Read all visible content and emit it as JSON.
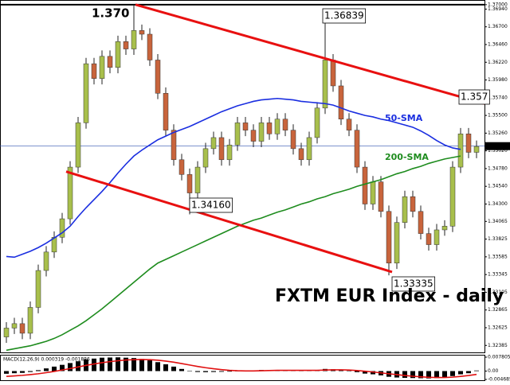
{
  "chart_data": [
    {
      "type": "candlestick",
      "title": "FXTM EUR Index - daily",
      "open": [
        1.325,
        1.3262,
        1.3268,
        1.3255,
        1.329,
        1.334,
        1.3365,
        1.3385,
        1.341,
        1.348,
        1.354,
        1.362,
        1.36,
        1.363,
        1.3615,
        1.365,
        1.364,
        1.3665,
        1.366,
        1.3625,
        1.358,
        1.353,
        1.349,
        1.347,
        1.3445,
        1.348,
        1.3505,
        1.352,
        1.349,
        1.351,
        1.354,
        1.353,
        1.3515,
        1.354,
        1.3525,
        1.3545,
        1.353,
        1.3505,
        1.349,
        1.352,
        1.356,
        1.3625,
        1.359,
        1.3545,
        1.353,
        1.348,
        1.343,
        1.346,
        1.342,
        1.335,
        1.3405,
        1.344,
        1.342,
        1.339,
        1.3375,
        1.3395,
        1.34,
        1.348,
        1.3525,
        1.35
      ],
      "high": [
        1.327,
        1.3276,
        1.3276,
        1.3298,
        1.3348,
        1.3373,
        1.3393,
        1.3418,
        1.3488,
        1.3548,
        1.3628,
        1.3628,
        1.3638,
        1.3638,
        1.3658,
        1.3658,
        1.37,
        1.3673,
        1.3668,
        1.3633,
        1.3588,
        1.3538,
        1.3498,
        1.3478,
        1.3488,
        1.3513,
        1.3528,
        1.3528,
        1.3518,
        1.3548,
        1.3548,
        1.3538,
        1.3548,
        1.3548,
        1.3553,
        1.3553,
        1.3538,
        1.3513,
        1.3528,
        1.3568,
        1.36839,
        1.3633,
        1.3598,
        1.3553,
        1.3538,
        1.3488,
        1.3468,
        1.3468,
        1.3428,
        1.3413,
        1.3448,
        1.3448,
        1.3428,
        1.3398,
        1.3403,
        1.3408,
        1.3488,
        1.3533,
        1.3533,
        1.3516
      ],
      "low": [
        1.3242,
        1.3254,
        1.3247,
        1.3247,
        1.3282,
        1.3332,
        1.3357,
        1.3377,
        1.3402,
        1.3472,
        1.3532,
        1.3592,
        1.3592,
        1.3607,
        1.3607,
        1.3632,
        1.3632,
        1.3652,
        1.3617,
        1.3572,
        1.3522,
        1.3482,
        1.3462,
        1.3416,
        1.3437,
        1.3472,
        1.3497,
        1.3482,
        1.3482,
        1.3502,
        1.3522,
        1.3507,
        1.3507,
        1.3517,
        1.3517,
        1.3522,
        1.3497,
        1.3482,
        1.3482,
        1.3512,
        1.3552,
        1.3582,
        1.3537,
        1.3522,
        1.3472,
        1.3422,
        1.3422,
        1.3412,
        1.33335,
        1.3342,
        1.3397,
        1.3412,
        1.3382,
        1.3367,
        1.3367,
        1.3387,
        1.3392,
        1.3472,
        1.3492,
        1.3492
      ],
      "close": [
        1.3262,
        1.3268,
        1.3255,
        1.329,
        1.334,
        1.3365,
        1.3385,
        1.341,
        1.348,
        1.354,
        1.362,
        1.36,
        1.363,
        1.3615,
        1.365,
        1.364,
        1.3665,
        1.366,
        1.3625,
        1.358,
        1.353,
        1.349,
        1.347,
        1.3445,
        1.348,
        1.3505,
        1.352,
        1.349,
        1.351,
        1.354,
        1.353,
        1.3515,
        1.354,
        1.3525,
        1.3545,
        1.353,
        1.3505,
        1.349,
        1.352,
        1.356,
        1.3625,
        1.359,
        1.3545,
        1.353,
        1.348,
        1.343,
        1.346,
        1.342,
        1.335,
        1.3405,
        1.344,
        1.342,
        1.339,
        1.3375,
        1.3395,
        1.34,
        1.348,
        1.3525,
        1.35,
        1.3508
      ],
      "up_color": "#a8bf4c",
      "down_color": "#c8643c",
      "series": [
        {
          "name": "50-SMA",
          "color": "#1a2ee0",
          "values": [
            1.3359,
            1.3358,
            1.3362,
            1.3366,
            1.3371,
            1.3377,
            1.3384,
            1.3391,
            1.34,
            1.3413,
            1.3425,
            1.3436,
            1.3447,
            1.3459,
            1.3472,
            1.3484,
            1.3495,
            1.3503,
            1.351,
            1.3517,
            1.3522,
            1.3527,
            1.3531,
            1.3535,
            1.354,
            1.3545,
            1.355,
            1.3555,
            1.3559,
            1.3563,
            1.3566,
            1.3569,
            1.3571,
            1.3572,
            1.3573,
            1.3572,
            1.3571,
            1.3569,
            1.3568,
            1.3567,
            1.3566,
            1.3564,
            1.356,
            1.3556,
            1.3553,
            1.355,
            1.3548,
            1.3545,
            1.3543,
            1.354,
            1.3537,
            1.3534,
            1.3529,
            1.3523,
            1.3516,
            1.351,
            1.3506,
            1.3504,
            null,
            null
          ]
        },
        {
          "name": "200-SMA",
          "color": "#1e8c1e",
          "values": [
            1.3232,
            1.3234,
            1.3236,
            1.3238,
            1.3241,
            1.3244,
            1.3248,
            1.3253,
            1.3259,
            1.3265,
            1.3272,
            1.328,
            1.3288,
            1.3297,
            1.3306,
            1.3315,
            1.3324,
            1.3333,
            1.3342,
            1.335,
            1.3355,
            1.336,
            1.3365,
            1.337,
            1.3375,
            1.338,
            1.3385,
            1.339,
            1.3395,
            1.34,
            1.3404,
            1.3408,
            1.3411,
            1.3415,
            1.3419,
            1.3422,
            1.3426,
            1.343,
            1.3433,
            1.3437,
            1.344,
            1.3444,
            1.3447,
            1.345,
            1.3454,
            1.3457,
            1.346,
            1.3463,
            1.3467,
            1.3471,
            1.3474,
            1.3478,
            1.3481,
            1.3485,
            1.3488,
            1.3491,
            1.3493,
            1.3495,
            null,
            null
          ]
        }
      ],
      "trendlines": [
        {
          "color": "#e81010",
          "x": [
            16.2,
            60
          ],
          "values": [
            1.37,
            1.3566
          ]
        },
        {
          "color": "#e81010",
          "x": [
            7.5,
            48.4
          ],
          "values": [
            1.3474,
            1.3338
          ]
        }
      ],
      "hline": {
        "value": 1.37,
        "color": "#000000"
      },
      "last_price": {
        "value": 1.35084,
        "label": "1.35084"
      },
      "annotations": [
        "1.370",
        "1.36839",
        "1.34160",
        "1.33335",
        "1.357"
      ],
      "ylim": [
        1.3228,
        1.3702
      ],
      "yticks": [
        {
          "value": 1.37,
          "label": "1.37000"
        },
        {
          "value": 1.3694,
          "label": "1.36940"
        },
        {
          "value": 1.367,
          "label": "1.36700"
        },
        {
          "value": 1.3646,
          "label": "1.36460"
        },
        {
          "value": 1.3622,
          "label": "1.36220"
        },
        {
          "value": 1.3598,
          "label": "1.35980"
        },
        {
          "value": 1.3574,
          "label": "1.35740"
        },
        {
          "value": 1.355,
          "label": "1.35500"
        },
        {
          "value": 1.3526,
          "label": "1.35260"
        },
        {
          "value": 1.3502,
          "label": "1.35020"
        },
        {
          "value": 1.3478,
          "label": "1.34780"
        },
        {
          "value": 1.3454,
          "label": "1.34540"
        },
        {
          "value": 1.343,
          "label": "1.34300"
        },
        {
          "value": 1.34065,
          "label": "1.34065"
        },
        {
          "value": 1.33825,
          "label": "1.33825"
        },
        {
          "value": 1.33585,
          "label": "1.33585"
        },
        {
          "value": 1.33345,
          "label": "1.33345"
        },
        {
          "value": 1.33105,
          "label": "1.33105"
        },
        {
          "value": 1.32865,
          "label": "1.32865"
        },
        {
          "value": 1.32625,
          "label": "1.32625"
        },
        {
          "value": 1.32385,
          "label": "1.32385"
        }
      ]
    },
    {
      "type": "macd",
      "title": "MACD(12,26,9) 0.000319 -0.001886",
      "series": [
        {
          "name": "MACD",
          "color": "#000000",
          "values": [
            -0.0015,
            -0.0012,
            -0.001,
            -0.0005,
            0.0005,
            0.0015,
            0.0025,
            0.0035,
            0.0045,
            0.0055,
            0.0065,
            0.007,
            0.0075,
            0.0076,
            0.0077,
            0.0075,
            0.0073,
            0.0068,
            0.006,
            0.005,
            0.0038,
            0.0025,
            0.0012,
            0.0002,
            -0.0005,
            -0.0006,
            -0.0005,
            -0.0004,
            -0.0003,
            0.0001,
            0.0003,
            0.0004,
            0.0006,
            0.0005,
            0.0006,
            0.0005,
            0.0003,
            0.0002,
            0.0003,
            0.0006,
            0.0012,
            0.001,
            0.0005,
            0.0,
            -0.0006,
            -0.0014,
            -0.0018,
            -0.0024,
            -0.0032,
            -0.0036,
            -0.0038,
            -0.0039,
            -0.004,
            -0.0041,
            -0.0039,
            -0.0036,
            -0.0028,
            -0.0018,
            -0.0012,
            0.000319
          ]
        },
        {
          "name": "Signal",
          "color": "#e01010",
          "values": [
            -0.003,
            -0.0027,
            -0.0024,
            -0.002,
            -0.0015,
            -0.0009,
            -0.0002,
            0.0006,
            0.0014,
            0.0023,
            0.0032,
            0.004,
            0.0047,
            0.0053,
            0.0058,
            0.0062,
            0.0064,
            0.0065,
            0.0064,
            0.0061,
            0.0056,
            0.005,
            0.0042,
            0.0034,
            0.0026,
            0.0019,
            0.0013,
            0.0008,
            0.0004,
            0.0002,
            0.0001,
            0.0001,
            0.0002,
            0.0003,
            0.0004,
            0.0004,
            0.0004,
            0.0004,
            0.0004,
            0.0004,
            0.0006,
            0.0007,
            0.0007,
            0.0006,
            0.0003,
            -0.0001,
            -0.0005,
            -0.001,
            -0.0015,
            -0.002,
            -0.0025,
            -0.0029,
            -0.0032,
            -0.0035,
            -0.0036,
            -0.0036,
            -0.0034,
            -0.003,
            -0.0025,
            -0.001886
          ]
        }
      ],
      "ylim": [
        -0.004685,
        0.007805
      ],
      "yticks": [
        0.007805,
        {
          "value": 0,
          "label": "0.00"
        },
        -0.004685
      ]
    }
  ]
}
